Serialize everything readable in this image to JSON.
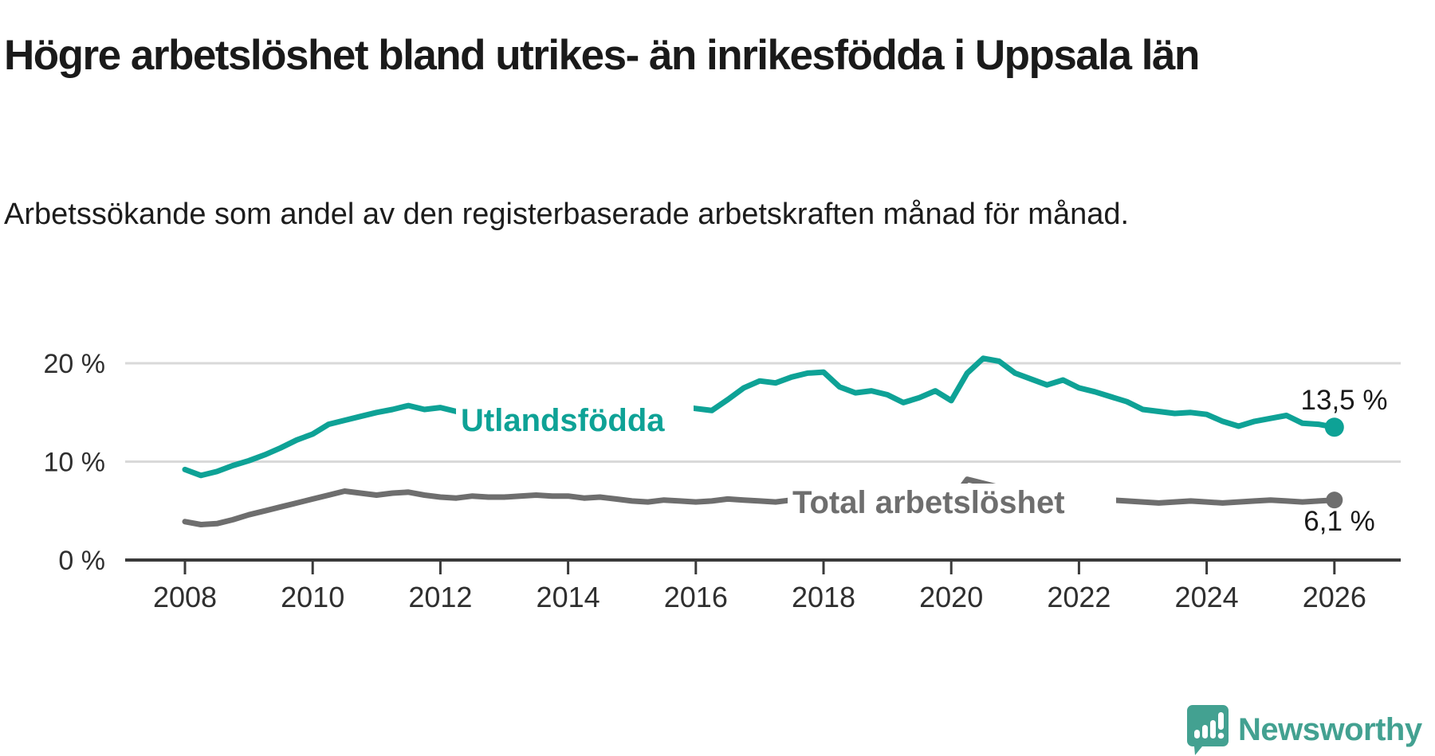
{
  "header": {
    "title": "Högre arbetslöshet bland utrikes- än inrikesfödda i Uppsala län",
    "subtitle": "Arbetssökande som andel av den registerbaserade arbetskraften månad för månad."
  },
  "branding": {
    "logo_text": "Newsworthy",
    "logo_color": "#43a191"
  },
  "colors": {
    "foreign_born_line": "#0ea296",
    "total_line": "#6e6e6e",
    "axis": "#3a3a3a",
    "gridline": "#d9d9d9",
    "tick_text": "#2f2f2f",
    "annotation_text": "#1a1a1a"
  },
  "chart_data": {
    "type": "line",
    "title": "Högre arbetslöshet bland utrikes- än inrikesfödda i Uppsala län",
    "xlabel": "",
    "ylabel": "",
    "grid": true,
    "legend_position": "inline-on-line",
    "x_start": 2008,
    "x_step_years": 0.25,
    "xlim": [
      2007.1,
      2027.1
    ],
    "ylim": [
      0,
      22
    ],
    "x_ticks": [
      {
        "value": 2008,
        "label": "2008"
      },
      {
        "value": 2010,
        "label": "2010"
      },
      {
        "value": 2012,
        "label": "2012"
      },
      {
        "value": 2014,
        "label": "2014"
      },
      {
        "value": 2016,
        "label": "2016"
      },
      {
        "value": 2018,
        "label": "2018"
      },
      {
        "value": 2020,
        "label": "2020"
      },
      {
        "value": 2022,
        "label": "2022"
      },
      {
        "value": 2024,
        "label": "2024"
      },
      {
        "value": 2026,
        "label": "2026"
      }
    ],
    "y_ticks": [
      {
        "value": 20,
        "label": "20 %"
      },
      {
        "value": 10,
        "label": "10 %"
      },
      {
        "value": 0,
        "label": "0 %"
      }
    ],
    "series": [
      {
        "name": "Utlandsfödda",
        "color": "#0ea296",
        "end_label": "13,5 %",
        "end_value": 13.5,
        "values": [
          9.2,
          8.6,
          9.0,
          9.6,
          10.1,
          10.7,
          11.4,
          12.2,
          12.8,
          13.8,
          14.2,
          14.6,
          15.0,
          15.3,
          15.7,
          15.3,
          15.5,
          15.1,
          15.4,
          15.2,
          15.4,
          15.6,
          15.5,
          15.3,
          15.5,
          15.2,
          15.4,
          15.1,
          15.0,
          15.2,
          15.4,
          15.6,
          15.4,
          15.2,
          16.3,
          17.5,
          18.2,
          18.0,
          18.6,
          19.0,
          19.1,
          17.6,
          17.0,
          17.2,
          16.8,
          16.0,
          16.5,
          17.2,
          16.2,
          19.0,
          20.5,
          20.2,
          19.0,
          18.4,
          17.8,
          18.3,
          17.5,
          17.1,
          16.6,
          16.1,
          15.3,
          15.1,
          14.9,
          15.0,
          14.8,
          14.1,
          13.6,
          14.1,
          14.4,
          14.7,
          13.9,
          13.8,
          13.5
        ]
      },
      {
        "name": "Total arbetslöshet",
        "color": "#6e6e6e",
        "end_label": "6,1 %",
        "end_value": 6.1,
        "values": [
          3.9,
          3.6,
          3.7,
          4.1,
          4.6,
          5.0,
          5.4,
          5.8,
          6.2,
          6.6,
          7.0,
          6.8,
          6.6,
          6.8,
          6.9,
          6.6,
          6.4,
          6.3,
          6.5,
          6.4,
          6.4,
          6.5,
          6.6,
          6.5,
          6.5,
          6.3,
          6.4,
          6.2,
          6.0,
          5.9,
          6.1,
          6.0,
          5.9,
          6.0,
          6.2,
          6.1,
          6.0,
          5.9,
          6.1,
          6.2,
          6.1,
          5.9,
          5.8,
          5.9,
          5.9,
          5.8,
          6.0,
          6.1,
          6.0,
          8.2,
          7.8,
          7.4,
          7.2,
          7.0,
          6.8,
          6.6,
          6.5,
          6.3,
          6.1,
          6.0,
          5.9,
          5.8,
          5.9,
          6.0,
          5.9,
          5.8,
          5.9,
          6.0,
          6.1,
          6.0,
          5.9,
          6.0,
          6.1
        ]
      }
    ]
  }
}
